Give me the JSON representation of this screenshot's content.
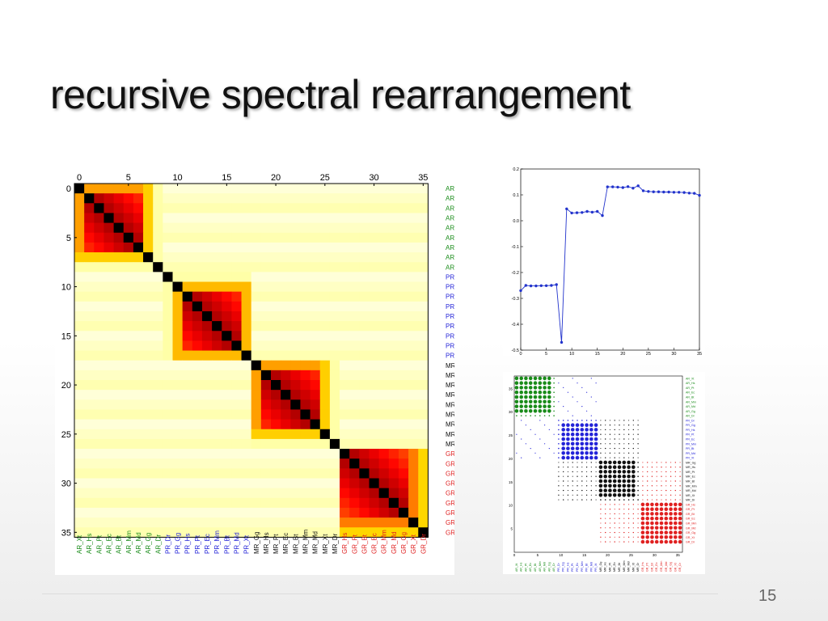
{
  "slide": {
    "title": "recursive spectral rearrangement",
    "page_number": "15"
  },
  "colors": {
    "AR": "#1a8c1a",
    "PR": "#2323d8",
    "MR": "#111111",
    "GR": "#e02020"
  },
  "chart_data": [
    {
      "type": "heatmap",
      "description_id": "similarity-matrix",
      "x_ticks": [
        0,
        5,
        10,
        15,
        20,
        25,
        30,
        35
      ],
      "y_ticks": [
        0,
        5,
        10,
        15,
        20,
        25,
        30,
        35
      ],
      "size": 36,
      "labels": [
        "AR_Xt",
        "AR_Hs",
        "AR_Pt",
        "AR_Ec",
        "AR_Bt",
        "AR_Mm",
        "AR_Md",
        "AR_Gg",
        "AR_Dr",
        "PR_Dr",
        "PR_Gg",
        "PR_Hs",
        "PR_Pt",
        "PR_Ec",
        "PR_Mm",
        "PR_Bt",
        "PR_Md",
        "PR_Xt",
        "MR_Gg",
        "MR_Hs",
        "MR_Pt",
        "MR_Ec",
        "MR_Bt",
        "MR_Mm",
        "MR_Md",
        "MR_Xt",
        "MR_Dr",
        "GR_Hs",
        "GR_Pt",
        "GR_Bt",
        "GR_Ec",
        "GR_Mm",
        "GR_Md",
        "GR_Gg",
        "GR_Xt",
        "GR_Dr"
      ],
      "blocks": [
        [
          0,
          8
        ],
        [
          9,
          17
        ],
        [
          18,
          26
        ],
        [
          27,
          35
        ]
      ],
      "colormap": "hot_r"
    },
    {
      "type": "line",
      "description_id": "eigenvector",
      "x": [
        0,
        1,
        2,
        3,
        4,
        5,
        6,
        7,
        8,
        9,
        10,
        11,
        12,
        13,
        14,
        15,
        16,
        17,
        18,
        19,
        20,
        21,
        22,
        23,
        24,
        25,
        26,
        27,
        28,
        29,
        30,
        31,
        32,
        33,
        34,
        35
      ],
      "y": [
        -0.27,
        -0.25,
        -0.252,
        -0.252,
        -0.251,
        -0.251,
        -0.25,
        -0.247,
        -0.47,
        0.046,
        0.03,
        0.031,
        0.032,
        0.036,
        0.033,
        0.036,
        0.02,
        0.131,
        0.131,
        0.13,
        0.128,
        0.132,
        0.126,
        0.135,
        0.116,
        0.113,
        0.112,
        0.112,
        0.111,
        0.111,
        0.11,
        0.11,
        0.109,
        0.107,
        0.106,
        0.098
      ],
      "xlim": [
        0,
        35
      ],
      "ylim": [
        -0.5,
        0.2
      ],
      "x_ticks": [
        0,
        5,
        10,
        15,
        20,
        25,
        30,
        35
      ],
      "y_ticks": [
        0.2,
        0.1,
        0.0,
        -0.1,
        -0.2,
        -0.3,
        -0.4,
        -0.5
      ],
      "color": "#2233cc"
    },
    {
      "type": "scatter",
      "description_id": "dot-matrix",
      "x_ticks": [
        0,
        5,
        10,
        15,
        20,
        25,
        30,
        35
      ],
      "y_ticks": [
        5,
        10,
        15,
        20,
        25,
        30,
        35
      ],
      "labels": [
        "AR_Xt",
        "AR_Hs",
        "AR_Pt",
        "AR_Ec",
        "AR_Bt",
        "AR_Mm",
        "AR_Md",
        "AR_Gg",
        "AR_Dr",
        "PR_Dr",
        "PR_Gg",
        "PR_Hs",
        "PR_Pt",
        "PR_Ec",
        "PR_Mm",
        "PR_Bt",
        "PR_Md",
        "PR_Xt",
        "MR_Gg",
        "MR_Hs",
        "MR_Pt",
        "MR_Ec",
        "MR_Bt",
        "MR_Mm",
        "MR_Md",
        "MR_Xt",
        "MR_Dr",
        "GR_Hs",
        "GR_Pt",
        "GR_Bt",
        "GR_Ec",
        "GR_Mm",
        "GR_Md",
        "GR_Gg",
        "GR_Xt",
        "GR_Dr"
      ]
    }
  ]
}
